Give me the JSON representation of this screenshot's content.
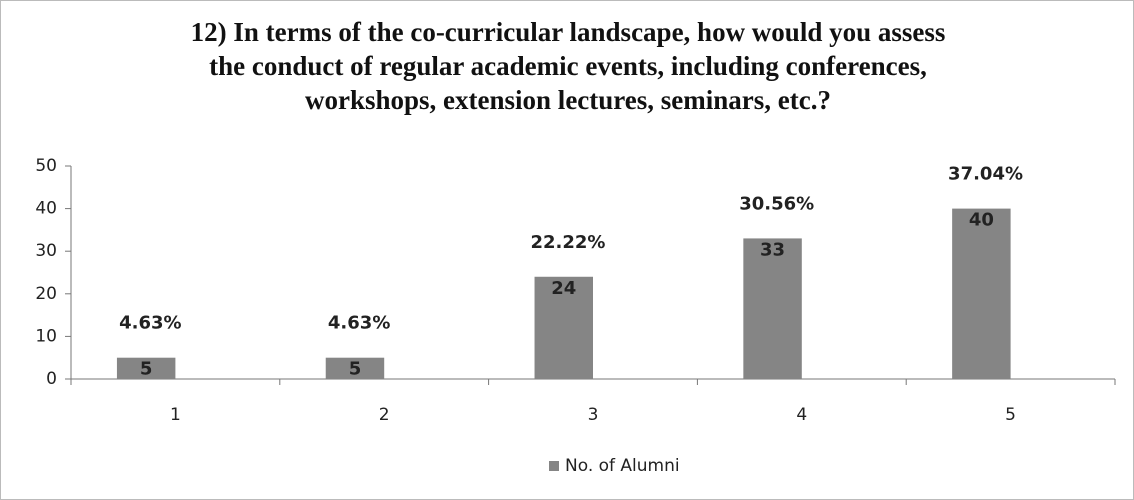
{
  "chart_data": {
    "type": "bar",
    "title": "12) In terms of the co-curricular landscape, how would you assess the conduct of regular academic events, including conferences, workshops, extension lectures, seminars, etc.?",
    "categories": [
      "1",
      "2",
      "3",
      "4",
      "5"
    ],
    "series": [
      {
        "name": "No. of Alumni",
        "color": "#858585",
        "values": [
          5,
          5,
          24,
          33,
          40
        ]
      }
    ],
    "percent_labels": [
      "4.63%",
      "4.63%",
      "22.22%",
      "30.56%",
      "37.04%"
    ],
    "ylim": [
      0,
      50
    ],
    "yticks": [
      0,
      10,
      20,
      30,
      40,
      50
    ],
    "grid": false,
    "legend": "bottom"
  }
}
